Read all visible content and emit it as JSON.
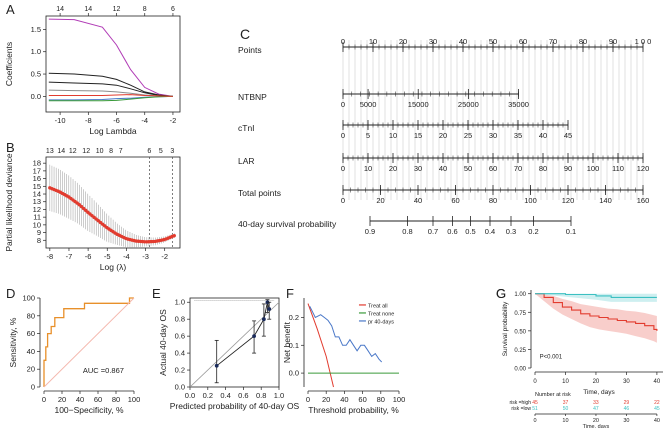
{
  "colors": {
    "red": "#e23b2e",
    "orange": "#e8902a",
    "teal": "#3cc0c2",
    "blue": "#4a78c8",
    "green": "#3a9a3a",
    "purple": "#b13cb6",
    "gray": "#8c8c8c",
    "pink": "#f4b8ae",
    "black": "#222222"
  },
  "chart_data": [
    {
      "id": "A",
      "label": "A",
      "type": "line",
      "xlabel": "Log Lambda",
      "ylabel": "Coefficients",
      "xlim": [
        -11,
        -1.5
      ],
      "ylim": [
        -0.35,
        1.8
      ],
      "xticks": [
        "-10",
        "-8",
        "-6",
        "-4",
        "-2"
      ],
      "xtick_values": [
        -10,
        -8,
        -6,
        -4,
        -2
      ],
      "yticks": [
        "0.0",
        "0.5",
        "1.0",
        "1.5"
      ],
      "ytick_values": [
        0,
        0.5,
        1.0,
        1.5
      ],
      "top_ticks": [
        "14",
        "14",
        "12",
        "8",
        "6"
      ],
      "top_tick_values": [
        -10,
        -8,
        -6,
        -4,
        -2
      ],
      "series": [
        {
          "name": "purple",
          "color": "purple",
          "x": [
            -10.8,
            -9,
            -7,
            -6,
            -5,
            -4,
            -3,
            -2
          ],
          "y": [
            1.73,
            1.72,
            1.55,
            1.15,
            0.6,
            0.2,
            0.05,
            0.0
          ]
        },
        {
          "name": "black1",
          "color": "black",
          "x": [
            -10.8,
            -9,
            -7,
            -6,
            -5,
            -4,
            -3,
            -2
          ],
          "y": [
            0.52,
            0.5,
            0.45,
            0.38,
            0.25,
            0.1,
            0.03,
            0.0
          ]
        },
        {
          "name": "black2",
          "color": "black",
          "x": [
            -10.8,
            -9,
            -7,
            -6,
            -5,
            -4,
            -3,
            -2
          ],
          "y": [
            0.32,
            0.3,
            0.28,
            0.25,
            0.17,
            0.08,
            0.02,
            0.0
          ]
        },
        {
          "name": "gray",
          "color": "gray",
          "x": [
            -10.8,
            -9,
            -7,
            -6,
            -5,
            -4,
            -3,
            -2
          ],
          "y": [
            0.14,
            0.13,
            0.12,
            0.1,
            0.07,
            0.03,
            0.01,
            0.0
          ]
        },
        {
          "name": "blue",
          "color": "blue",
          "x": [
            -10.8,
            -9,
            -7,
            -6,
            -5,
            -4,
            -3,
            -2
          ],
          "y": [
            -0.08,
            -0.08,
            -0.07,
            -0.05,
            -0.04,
            -0.02,
            -0.01,
            0.0
          ]
        },
        {
          "name": "green",
          "color": "green",
          "x": [
            -10.8,
            -9,
            -7,
            -6,
            -5,
            -4,
            -3,
            -2
          ],
          "y": [
            -0.1,
            -0.1,
            -0.1,
            -0.09,
            -0.06,
            -0.03,
            -0.01,
            0.0
          ]
        },
        {
          "name": "red",
          "color": "red",
          "x": [
            -10.8,
            -9,
            -7,
            -6,
            -5,
            -4,
            -3,
            -2
          ],
          "y": [
            0.02,
            0.02,
            0.02,
            0.03,
            0.04,
            0.02,
            0.01,
            0.0
          ]
        }
      ]
    },
    {
      "id": "B",
      "label": "B",
      "type": "scatter",
      "xlabel": "Log (λ)",
      "ylabel": "Partial likelihood deviance",
      "xlim": [
        -8.2,
        -1.2
      ],
      "ylim": [
        7.0,
        18.8
      ],
      "xticks": [
        "-8",
        "-7",
        "-6",
        "-5",
        "-4",
        "-3",
        "-2"
      ],
      "xtick_values": [
        -8,
        -7,
        -6,
        -5,
        -4,
        -3,
        -2
      ],
      "yticks": [
        "8",
        "9",
        "10",
        "11",
        "12",
        "13",
        "14",
        "15",
        "16",
        "17",
        "18"
      ],
      "ytick_values": [
        8,
        9,
        10,
        11,
        12,
        13,
        14,
        15,
        16,
        17,
        18
      ],
      "top_ticks": [
        "13",
        "14",
        "12",
        "12",
        "10",
        "8",
        "7",
        "6",
        "5",
        "3"
      ],
      "top_tick_values": [
        -8,
        -7.4,
        -6.8,
        -6.1,
        -5.4,
        -4.8,
        -4.3,
        -2.8,
        -2.2,
        -1.6
      ],
      "vlines": [
        -2.8,
        -1.6
      ],
      "x": [
        -8,
        -7.5,
        -7,
        -6.5,
        -6,
        -5.5,
        -5,
        -4.5,
        -4,
        -3.5,
        -3,
        -2.5,
        -2,
        -1.5
      ],
      "y": [
        14.8,
        14.3,
        13.6,
        12.7,
        11.6,
        10.6,
        9.6,
        8.8,
        8.2,
        7.9,
        7.8,
        7.85,
        8.1,
        8.6
      ],
      "err": [
        3.0,
        2.9,
        2.8,
        2.6,
        2.4,
        2.1,
        1.8,
        1.4,
        1.1,
        0.8,
        0.6,
        0.5,
        0.4,
        0.3
      ]
    },
    {
      "id": "D",
      "label": "D",
      "type": "line",
      "xlabel": "100−Specificity, %",
      "ylabel": "Sensitivity, %",
      "xlim": [
        0,
        100
      ],
      "ylim": [
        0,
        100
      ],
      "xticks": [
        "0",
        "20",
        "40",
        "60",
        "80",
        "100"
      ],
      "xtick_values": [
        0,
        20,
        40,
        60,
        80,
        100
      ],
      "yticks": [
        "0",
        "20",
        "40",
        "60",
        "80",
        "100"
      ],
      "ytick_values": [
        0,
        20,
        40,
        60,
        80,
        100
      ],
      "annotation": "AUC =0.867",
      "series": [
        {
          "name": "ROC",
          "color": "orange",
          "x": [
            0,
            0,
            2,
            2,
            4,
            4,
            8,
            8,
            12,
            12,
            22,
            22,
            45,
            45,
            95,
            95,
            100
          ],
          "y": [
            0,
            30,
            30,
            45,
            45,
            60,
            60,
            68,
            68,
            78,
            78,
            88,
            88,
            94,
            94,
            100,
            100
          ]
        },
        {
          "name": "reference",
          "color": "pink",
          "x": [
            0,
            100
          ],
          "y": [
            0,
            100
          ]
        }
      ]
    },
    {
      "id": "E",
      "label": "E",
      "type": "scatter",
      "xlabel": "Predicted probability of 40-day OS",
      "ylabel": "Actual 40-day OS",
      "xlim": [
        0,
        1.0
      ],
      "ylim": [
        0,
        1.05
      ],
      "xticks": [
        "0.0",
        "0.2",
        "0.4",
        "0.6",
        "0.8",
        "1.0"
      ],
      "xtick_values": [
        0,
        0.2,
        0.4,
        0.6,
        0.8,
        1.0
      ],
      "yticks": [
        "0.0",
        "0.2",
        "0.4",
        "0.6",
        "0.8",
        "1.0"
      ],
      "ytick_values": [
        0,
        0.2,
        0.4,
        0.6,
        0.8,
        1.0
      ],
      "x": [
        0.3,
        0.72,
        0.83,
        0.87,
        0.89
      ],
      "y": [
        0.25,
        0.6,
        0.8,
        1.0,
        0.92
      ],
      "lo": [
        0.05,
        0.4,
        0.6,
        0.88,
        0.8
      ],
      "hi": [
        0.55,
        0.78,
        0.98,
        1.03,
        1.0
      ]
    },
    {
      "id": "F",
      "label": "F",
      "type": "line",
      "xlabel": "Threshold probability, %",
      "ylabel": "Net benefit",
      "xlim": [
        0,
        100
      ],
      "ylim": [
        -0.05,
        0.27
      ],
      "xticks": [
        "0",
        "20",
        "40",
        "60",
        "80",
        "100"
      ],
      "xtick_values": [
        0,
        20,
        40,
        60,
        80,
        100
      ],
      "yticks": [
        "0.0",
        "0.1",
        "0.2"
      ],
      "ytick_values": [
        0,
        0.1,
        0.2
      ],
      "legend": [
        "Treat all",
        "Treat none",
        "pr 40-days"
      ],
      "series": [
        {
          "name": "Treat all",
          "color": "red",
          "x": [
            0,
            10,
            20,
            28
          ],
          "y": [
            0.25,
            0.16,
            0.06,
            -0.05
          ]
        },
        {
          "name": "Treat none",
          "color": "green",
          "x": [
            0,
            100
          ],
          "y": [
            0,
            0
          ]
        },
        {
          "name": "pr 40-days",
          "color": "blue",
          "x": [
            2,
            8,
            14,
            18,
            22,
            26,
            30,
            34,
            38,
            42,
            46,
            50,
            54,
            58,
            62,
            66,
            70,
            74,
            78,
            81
          ],
          "y": [
            0.24,
            0.2,
            0.21,
            0.2,
            0.19,
            0.17,
            0.13,
            0.13,
            0.1,
            0.1,
            0.12,
            0.1,
            0.08,
            0.1,
            0.1,
            0.08,
            0.06,
            0.07,
            0.05,
            0.04
          ]
        }
      ]
    },
    {
      "id": "G",
      "label": "G",
      "type": "area",
      "xlabel": "Time, days",
      "ylabel": "Survival probability",
      "xlim": [
        0,
        42
      ],
      "ylim": [
        0,
        1.05
      ],
      "xticks": [
        "0",
        "10",
        "20",
        "30",
        "40"
      ],
      "xtick_values": [
        0,
        10,
        20,
        30,
        40
      ],
      "yticks": [
        "0.00",
        "0.25",
        "0.50",
        "0.75",
        "1.00"
      ],
      "ytick_values": [
        0,
        0.25,
        0.5,
        0.75,
        1.0
      ],
      "annotation": "P<0.001",
      "series": [
        {
          "name": "risk=high",
          "color": "red",
          "x": [
            0,
            3,
            6,
            9,
            12,
            15,
            18,
            21,
            24,
            27,
            30,
            33,
            36,
            39,
            40
          ],
          "y": [
            1.0,
            0.95,
            0.88,
            0.82,
            0.78,
            0.73,
            0.7,
            0.68,
            0.66,
            0.64,
            0.62,
            0.6,
            0.57,
            0.52,
            0.5
          ],
          "lower": [
            1.0,
            0.9,
            0.8,
            0.72,
            0.66,
            0.6,
            0.55,
            0.52,
            0.5,
            0.48,
            0.46,
            0.43,
            0.4,
            0.36,
            0.34
          ],
          "upper": [
            1.0,
            0.99,
            0.97,
            0.93,
            0.9,
            0.86,
            0.84,
            0.82,
            0.8,
            0.79,
            0.77,
            0.76,
            0.74,
            0.71,
            0.7
          ]
        },
        {
          "name": "risk=low",
          "color": "teal",
          "x": [
            0,
            10,
            20,
            25,
            30,
            40
          ],
          "y": [
            1.0,
            0.99,
            0.97,
            0.95,
            0.95,
            0.95
          ],
          "lower": [
            1.0,
            0.96,
            0.92,
            0.89,
            0.89,
            0.89
          ],
          "upper": [
            1.0,
            1.0,
            1.0,
            1.0,
            1.0,
            1.0
          ]
        }
      ],
      "risk_table": {
        "title": "Number at risk",
        "rows": [
          {
            "label": "risk =high",
            "color": "red",
            "values": [
              "45",
              "37",
              "33",
              "29",
              "22"
            ]
          },
          {
            "label": "risk =low",
            "color": "teal",
            "values": [
              "51",
              "50",
              "47",
              "46",
              "45"
            ]
          }
        ],
        "xticks": [
          "0",
          "10",
          "20",
          "30",
          "40"
        ],
        "xlabel": "Time, days"
      }
    }
  ],
  "nomogram": {
    "label": "C",
    "rows": [
      {
        "name": "Points",
        "ticks": [
          "0",
          "10",
          "20",
          "30",
          "40",
          "50",
          "60",
          "70",
          "80",
          "90",
          "1 0 0"
        ],
        "values": [
          0,
          10,
          20,
          30,
          40,
          50,
          60,
          70,
          80,
          90,
          100
        ],
        "vmin": 0,
        "vmax": 100,
        "start": 0,
        "end": 100,
        "labels_above": true
      },
      {
        "name": "NTBNP",
        "ticks": [
          "0",
          "5000",
          "15000",
          "25000",
          "35000"
        ],
        "values": [
          0,
          5000,
          15000,
          25000,
          35000
        ],
        "vmin": 0,
        "vmax": 35000,
        "start": 0,
        "end": 58.5,
        "labels_above": false
      },
      {
        "name": "cTnI",
        "ticks": [
          "0",
          "5",
          "10",
          "15",
          "20",
          "25",
          "30",
          "35",
          "40",
          "45"
        ],
        "values": [
          0,
          5,
          10,
          15,
          20,
          25,
          30,
          35,
          40,
          45
        ],
        "vmin": 0,
        "vmax": 45,
        "start": 0,
        "end": 75,
        "labels_above": false
      },
      {
        "name": "LAR",
        "ticks": [
          "0",
          "10",
          "20",
          "30",
          "40",
          "50",
          "60",
          "70",
          "80",
          "90",
          "100",
          "110",
          "120"
        ],
        "values": [
          0,
          10,
          20,
          30,
          40,
          50,
          60,
          70,
          80,
          90,
          100,
          110,
          120
        ],
        "vmin": 0,
        "vmax": 120,
        "start": 0,
        "end": 100,
        "labels_above": false
      },
      {
        "name": "Total points",
        "ticks": [
          "0",
          "20",
          "40",
          "60",
          "80",
          "100",
          "120",
          "140",
          "160"
        ],
        "values": [
          0,
          20,
          40,
          60,
          80,
          100,
          120,
          140,
          160
        ],
        "vmin": 0,
        "vmax": 160,
        "start": 0,
        "end": 100,
        "labels_above": false
      },
      {
        "name": "40-day survival probability",
        "ticks": [
          "0.9",
          "0.8",
          "0.7",
          "0.6",
          "0.5",
          "0.4",
          "0.3",
          "0.2",
          "0.1"
        ],
        "positions": [
          9,
          21.5,
          30,
          36.5,
          42.5,
          49,
          56,
          63.5,
          76
        ],
        "start": 9,
        "end": 76,
        "labels_above": false
      }
    ]
  }
}
